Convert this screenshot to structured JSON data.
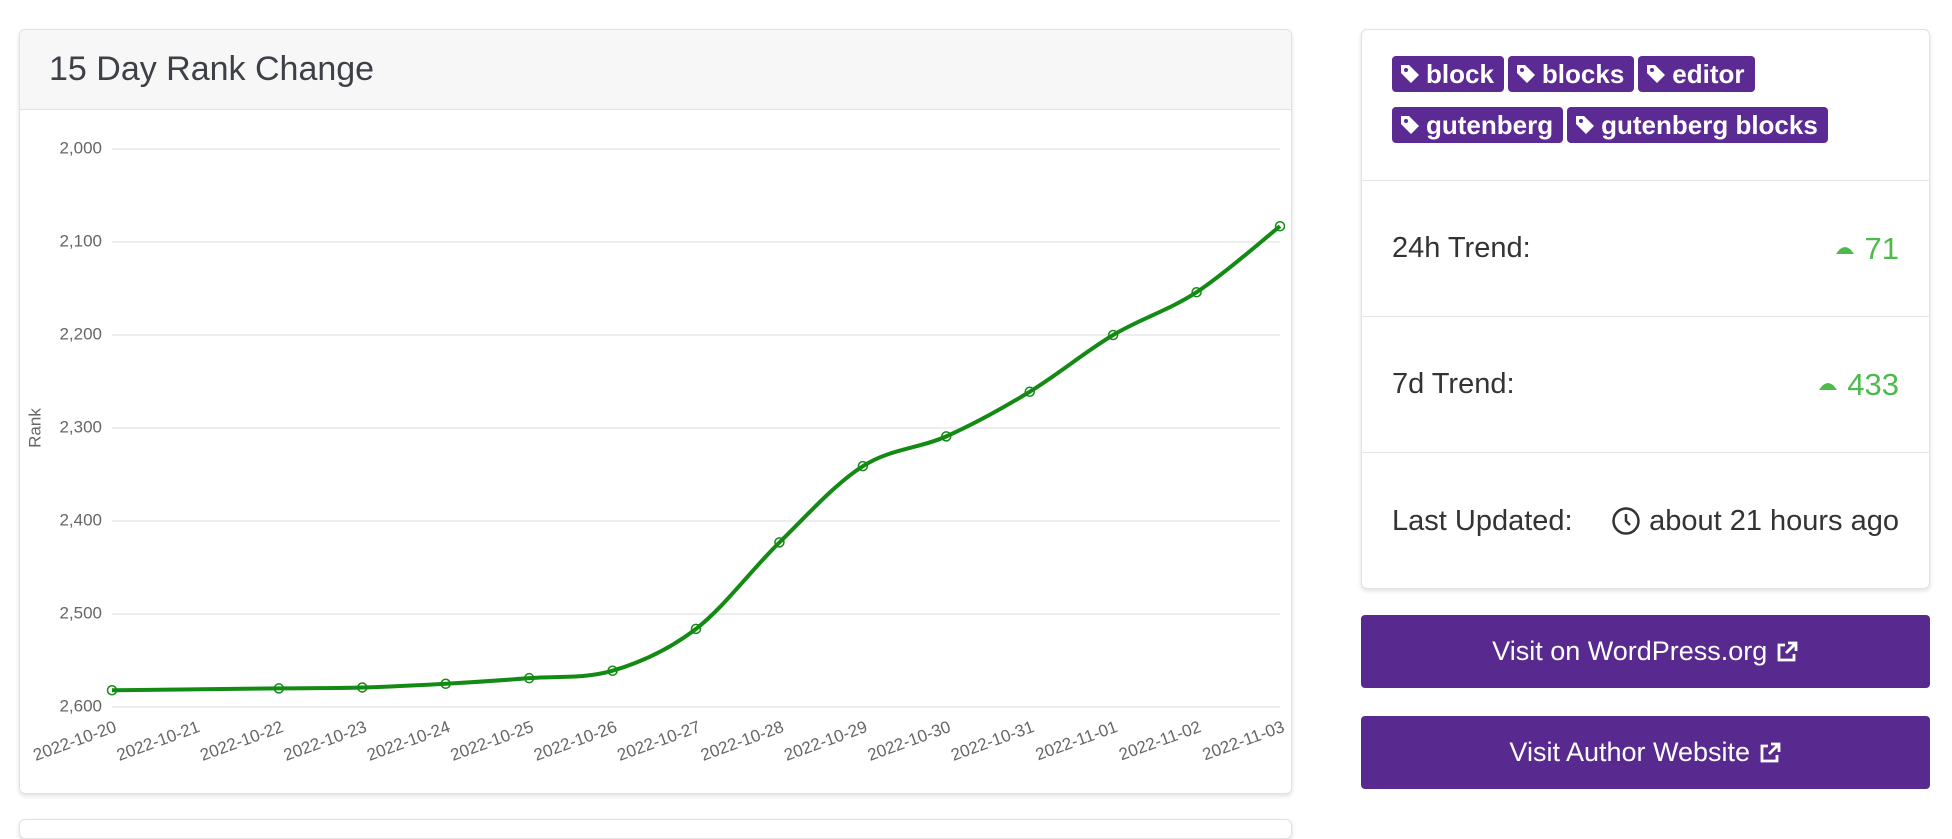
{
  "chart_data": {
    "type": "line",
    "title": "15 Day Rank Change",
    "y_label": "Rank",
    "categories": [
      "2022-10-20",
      "2022-10-21",
      "2022-10-22",
      "2022-10-23",
      "2022-10-24",
      "2022-10-25",
      "2022-10-26",
      "2022-10-27",
      "2022-10-28",
      "2022-10-29",
      "2022-10-30",
      "2022-10-31",
      "2022-11-01",
      "2022-11-02",
      "2022-11-03"
    ],
    "series": [
      {
        "name": "Rank",
        "color": "#138a13",
        "values": [
          2582,
          null,
          2580,
          2579,
          2575,
          2569,
          2561,
          2516,
          2423,
          2341,
          2309,
          2261,
          2200,
          2154,
          2083
        ]
      }
    ],
    "ylim": [
      2000,
      2600
    ],
    "y_inverted": true,
    "span_gaps": true,
    "smooth": true,
    "grid": true,
    "yticks": [
      {
        "value": 2000,
        "label": "2,000"
      },
      {
        "value": 2100,
        "label": "2,100"
      },
      {
        "value": 2200,
        "label": "2,200"
      },
      {
        "value": 2300,
        "label": "2,300"
      },
      {
        "value": 2400,
        "label": "2,400"
      },
      {
        "value": 2500,
        "label": "2,500"
      },
      {
        "value": 2600,
        "label": "2,600"
      }
    ]
  },
  "sidebar": {
    "tags": [
      "block",
      "blocks",
      "editor",
      "gutenberg",
      "gutenberg blocks"
    ],
    "trend_24h": {
      "label": "24h Trend:",
      "value": "71"
    },
    "trend_7d": {
      "label": "7d Trend:",
      "value": "433"
    },
    "updated": {
      "label": "Last Updated:",
      "value": "about 21 hours ago"
    },
    "buttons": [
      "Visit on WordPress.org",
      "Visit Author Website"
    ]
  }
}
